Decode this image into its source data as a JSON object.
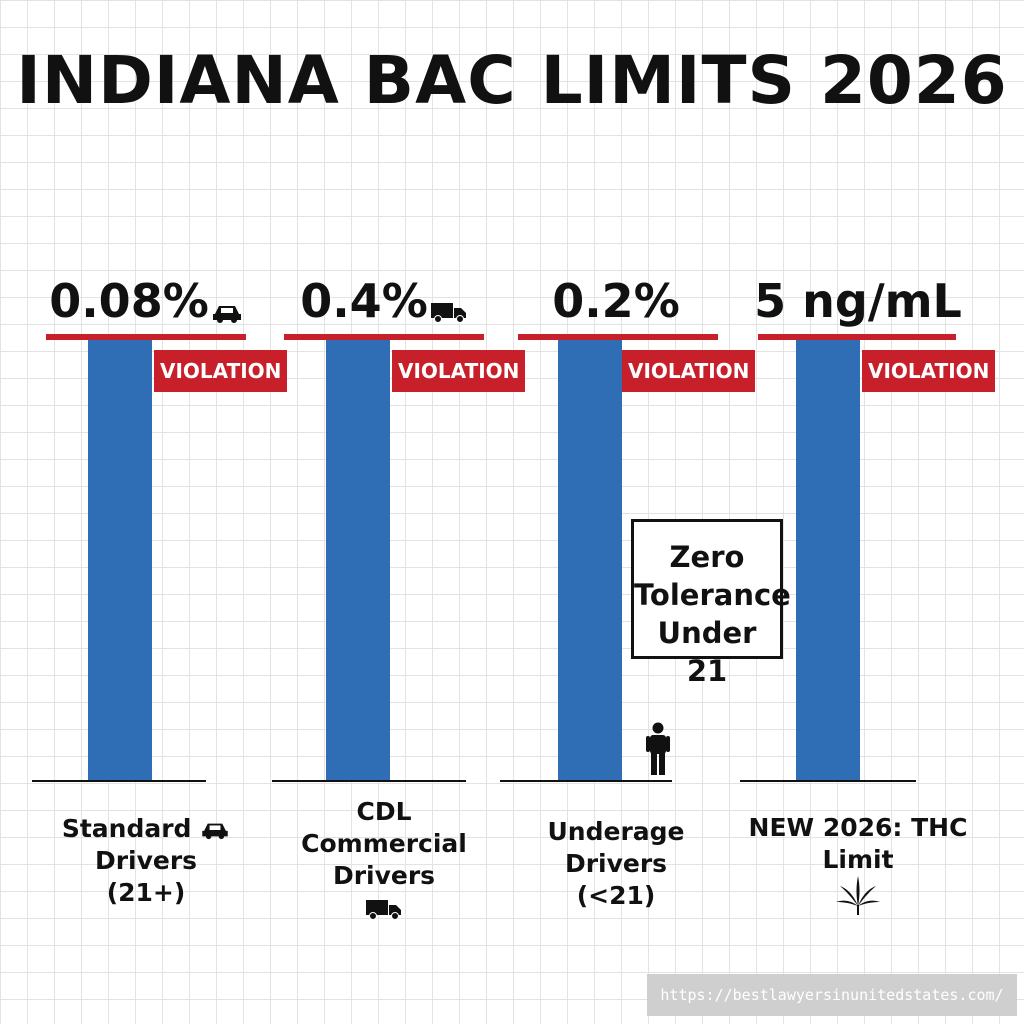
{
  "title": "INDIANA BAC LIMITS 2026",
  "chart_data": {
    "type": "bar",
    "title": "INDIANA BAC LIMITS 2026",
    "categories": [
      [
        "Standard",
        "Drivers",
        "(21+)"
      ],
      [
        "CDL",
        "Commercial",
        "Drivers"
      ],
      [
        "Underage",
        "Drivers",
        "(<21)"
      ],
      [
        "NEW 2026: THC",
        "Limit"
      ]
    ],
    "value_labels": [
      "0.08%",
      "0.4%",
      "0.2%",
      "5 ng/mL"
    ],
    "bar_label": "VIOLATION",
    "annotations": [
      {
        "category_index": 2,
        "lines": [
          "Zero",
          "Tolerance",
          "Under 21"
        ]
      }
    ],
    "grid": true,
    "colors": {
      "bar": "#2f6db5",
      "limit_line": "#c8202a",
      "violation_badge": "#c8202a"
    }
  },
  "icons": {
    "standard": "car-icon",
    "cdl": "truck-icon",
    "underage": "person-icon",
    "thc": "cannabis-leaf-icon"
  },
  "watermark": "https://bestlawyersinunitedstates.com/"
}
